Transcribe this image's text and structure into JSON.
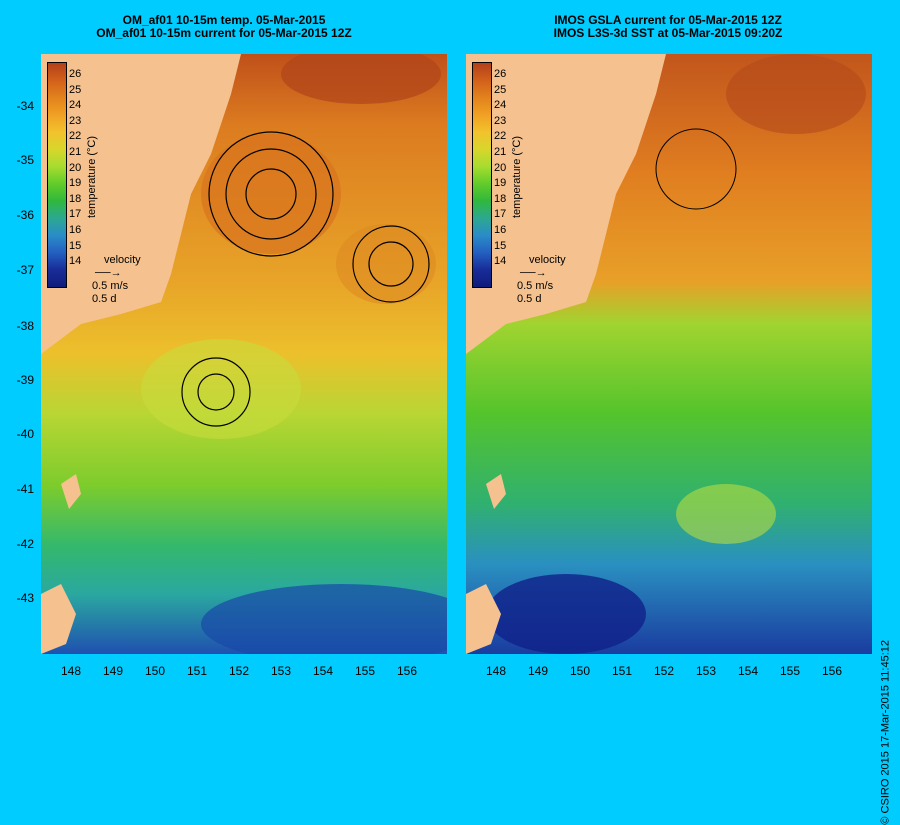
{
  "left_panel": {
    "title_line1": "OM_af01 10-15m temp. 05-Mar-2015",
    "title_line2": "OM_af01 10-15m current for 05-Mar-2015 12Z"
  },
  "right_panel": {
    "title_line1": "IMOS GSLA current for 05-Mar-2015 12Z",
    "title_line2": "IMOS L3S-3d SST at 05-Mar-2015 09:20Z"
  },
  "colorbar": {
    "title": "temperature (°C)",
    "ticks": [
      "26",
      "25",
      "24",
      "23",
      "22",
      "21",
      "20",
      "19",
      "18",
      "17",
      "16",
      "15",
      "14"
    ],
    "colors": [
      "#b2401a",
      "#d2601a",
      "#e2821c",
      "#f0a024",
      "#f2c22c",
      "#d8d62c",
      "#a8dc30",
      "#62cc2a",
      "#30b83c",
      "#2ca890",
      "#2a8cc8",
      "#2460c0",
      "#182c98",
      "#101c7c"
    ]
  },
  "velocity_key": {
    "label": "velocity",
    "speed": "0.5 m/s",
    "days": "0.5 d"
  },
  "y_axis": [
    "-34",
    "-35",
    "-36",
    "-37",
    "-38",
    "-39",
    "-40",
    "-41",
    "-42",
    "-43"
  ],
  "x_axis": [
    "148",
    "149",
    "150",
    "151",
    "152",
    "153",
    "154",
    "155",
    "156"
  ],
  "credit": "© CSIRO 2015   17-Mar-2015 11:45:12"
}
